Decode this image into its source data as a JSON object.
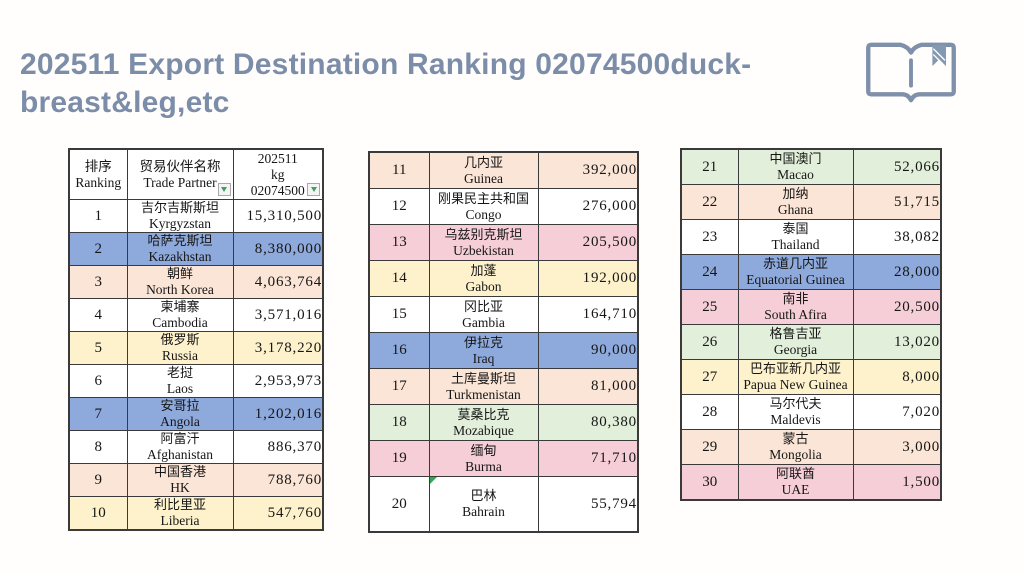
{
  "title": "202511 Export Destination Ranking 02074500duck-breast&leg,etc",
  "icons": {
    "top_right": "open-book-bookmark-icon",
    "filter": "filter-dropdown-icon",
    "note": "green-corner-note-marker"
  },
  "colors": {
    "accent": "#7b8da8",
    "border": "#3a3a3a",
    "filter_arrow": "#3fa05f",
    "note_marker": "#2fa84f",
    "row_white": "#ffffff",
    "row_blue": "#8ea9db",
    "row_peach": "#fbe5d6",
    "row_yellow": "#fef2cc",
    "row_pink": "#f6ced7",
    "row_green": "#e2efda"
  },
  "tables": {
    "t1": {
      "name": "ranking-table-1-10",
      "headers": [
        {
          "text": "排序\nRanking",
          "filter": false
        },
        {
          "text": "贸易伙伴名称\nTrade Partner",
          "filter": true
        },
        {
          "text": "202511\nkg\n02074500",
          "filter": true
        }
      ],
      "rows": [
        {
          "rank": "1",
          "name_cn": "吉尔吉斯斯坦",
          "name_en": "Kyrgyzstan",
          "value": "15,310,500",
          "color": "white"
        },
        {
          "rank": "2",
          "name_cn": "哈萨克斯坦",
          "name_en": "Kazakhstan",
          "value": "8,380,000",
          "color": "blue"
        },
        {
          "rank": "3",
          "name_cn": "朝鲜",
          "name_en": "North Korea",
          "value": "4,063,764",
          "color": "peach"
        },
        {
          "rank": "4",
          "name_cn": "柬埔寨",
          "name_en": "Cambodia",
          "value": "3,571,016",
          "color": "white"
        },
        {
          "rank": "5",
          "name_cn": "俄罗斯",
          "name_en": "Russia",
          "value": "3,178,220",
          "color": "yellow"
        },
        {
          "rank": "6",
          "name_cn": "老挝",
          "name_en": "Laos",
          "value": "2,953,973",
          "color": "white"
        },
        {
          "rank": "7",
          "name_cn": "安哥拉",
          "name_en": "Angola",
          "value": "1,202,016",
          "color": "blue"
        },
        {
          "rank": "8",
          "name_cn": "阿富汗",
          "name_en": "Afghanistan",
          "value": "886,370",
          "color": "white"
        },
        {
          "rank": "9",
          "name_cn": "中国香港",
          "name_en": "HK",
          "value": "788,760",
          "color": "peach"
        },
        {
          "rank": "10",
          "name_cn": "利比里亚",
          "name_en": "Liberia",
          "value": "547,760",
          "color": "yellow"
        }
      ]
    },
    "t2": {
      "name": "ranking-table-11-20",
      "headers": null,
      "rows": [
        {
          "rank": "11",
          "name_cn": "几内亚",
          "name_en": "Guinea",
          "value": "392,000",
          "color": "peach"
        },
        {
          "rank": "12",
          "name_cn": "刚果民主共和国",
          "name_en": "Congo",
          "value": "276,000",
          "color": "white"
        },
        {
          "rank": "13",
          "name_cn": "乌兹别克斯坦",
          "name_en": "Uzbekistan",
          "value": "205,500",
          "color": "pink"
        },
        {
          "rank": "14",
          "name_cn": "加蓬",
          "name_en": "Gabon",
          "value": "192,000",
          "color": "yellow"
        },
        {
          "rank": "15",
          "name_cn": "冈比亚",
          "name_en": "Gambia",
          "value": "164,710",
          "color": "white"
        },
        {
          "rank": "16",
          "name_cn": "伊拉克",
          "name_en": "Iraq",
          "value": "90,000",
          "color": "blue"
        },
        {
          "rank": "17",
          "name_cn": "土库曼斯坦",
          "name_en": "Turkmenistan",
          "value": "81,000",
          "color": "peach"
        },
        {
          "rank": "18",
          "name_cn": "莫桑比克",
          "name_en": "Mozabique",
          "value": "80,380",
          "color": "green"
        },
        {
          "rank": "19",
          "name_cn": "缅甸",
          "name_en": "Burma",
          "value": "71,710",
          "color": "pink"
        },
        {
          "rank": "20",
          "name_cn": "巴林",
          "name_en": "Bahrain",
          "value": "55,794",
          "color": "white",
          "note_marker": true
        }
      ]
    },
    "t3": {
      "name": "ranking-table-21-30",
      "headers": null,
      "rows": [
        {
          "rank": "21",
          "name_cn": "中国澳门",
          "name_en": "Macao",
          "value": "52,066",
          "color": "green"
        },
        {
          "rank": "22",
          "name_cn": "加纳",
          "name_en": "Ghana",
          "value": "51,715",
          "color": "peach"
        },
        {
          "rank": "23",
          "name_cn": "泰国",
          "name_en": "Thailand",
          "value": "38,082",
          "color": "white"
        },
        {
          "rank": "24",
          "name_cn": "赤道几内亚",
          "name_en": "Equatorial Guinea",
          "value": "28,000",
          "color": "blue"
        },
        {
          "rank": "25",
          "name_cn": "南非",
          "name_en": "South Afira",
          "value": "20,500",
          "color": "pink"
        },
        {
          "rank": "26",
          "name_cn": "格鲁吉亚",
          "name_en": "Georgia",
          "value": "13,020",
          "color": "green"
        },
        {
          "rank": "27",
          "name_cn": "巴布亚新几内亚",
          "name_en": "Papua New Guinea",
          "value": "8,000",
          "color": "yellow"
        },
        {
          "rank": "28",
          "name_cn": "马尔代夫",
          "name_en": "Maldevis",
          "value": "7,020",
          "color": "white"
        },
        {
          "rank": "29",
          "name_cn": "蒙古",
          "name_en": "Mongolia",
          "value": "3,000",
          "color": "peach"
        },
        {
          "rank": "30",
          "name_cn": "阿联酋",
          "name_en": "UAE",
          "value": "1,500",
          "color": "pink"
        }
      ]
    }
  }
}
